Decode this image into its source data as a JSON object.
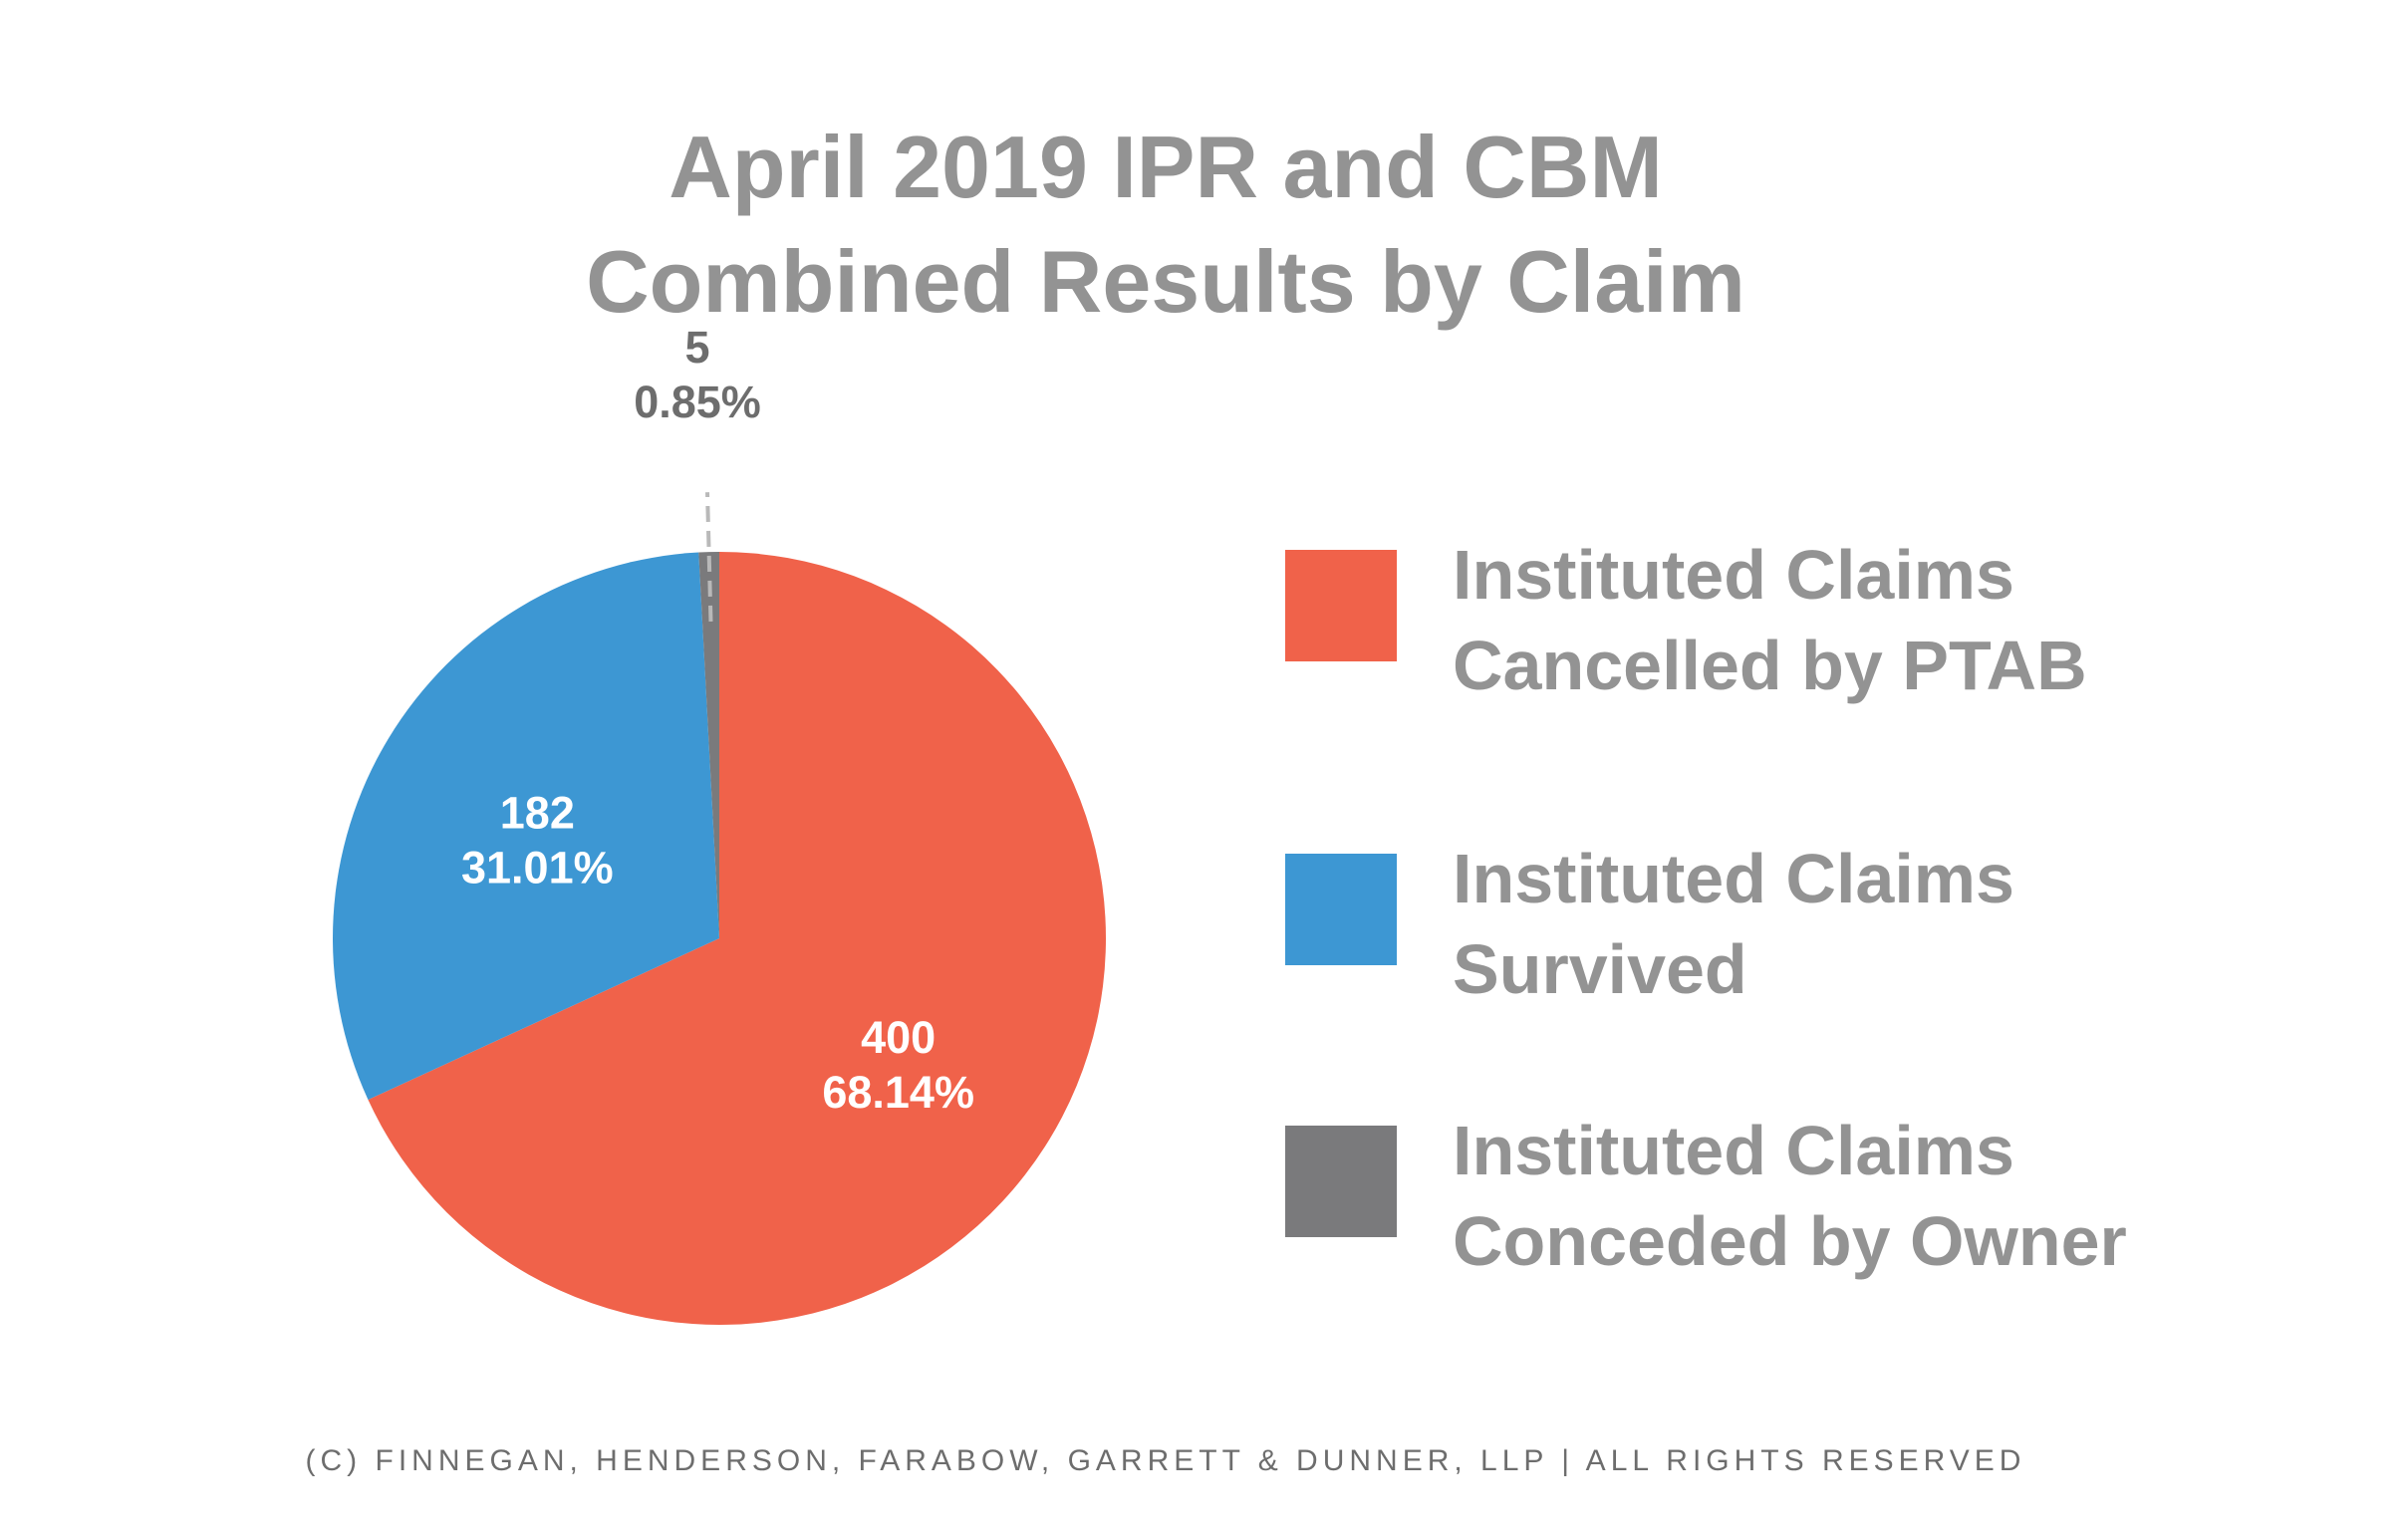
{
  "chart_data": {
    "type": "pie",
    "title": [
      "April 2019 IPR and CBM",
      "Combined Results by Claim"
    ],
    "slices": [
      {
        "label": [
          "Instituted Claims",
          "Cancelled by PTAB"
        ],
        "value": 400,
        "percent": "68.14%",
        "color": "#F0624A"
      },
      {
        "label": [
          "Instituted Claims",
          "Survived"
        ],
        "value": 182,
        "percent": "31.01%",
        "color": "#3D97D3"
      },
      {
        "label": [
          "Instituted Claims",
          "Conceded by Owner"
        ],
        "value": 5,
        "percent": "0.85%",
        "color": "#7A7A7C"
      }
    ],
    "legend_placement": "right"
  },
  "footer": "(C) FINNEGAN, HENDERSON, FARABOW, GARRETT & DUNNER, LLP | ALL RIGHTS RESERVED",
  "colors": {
    "title": "#939393",
    "data_label_inside": "#ffffff",
    "data_label_outside": "#6d6d6d"
  }
}
